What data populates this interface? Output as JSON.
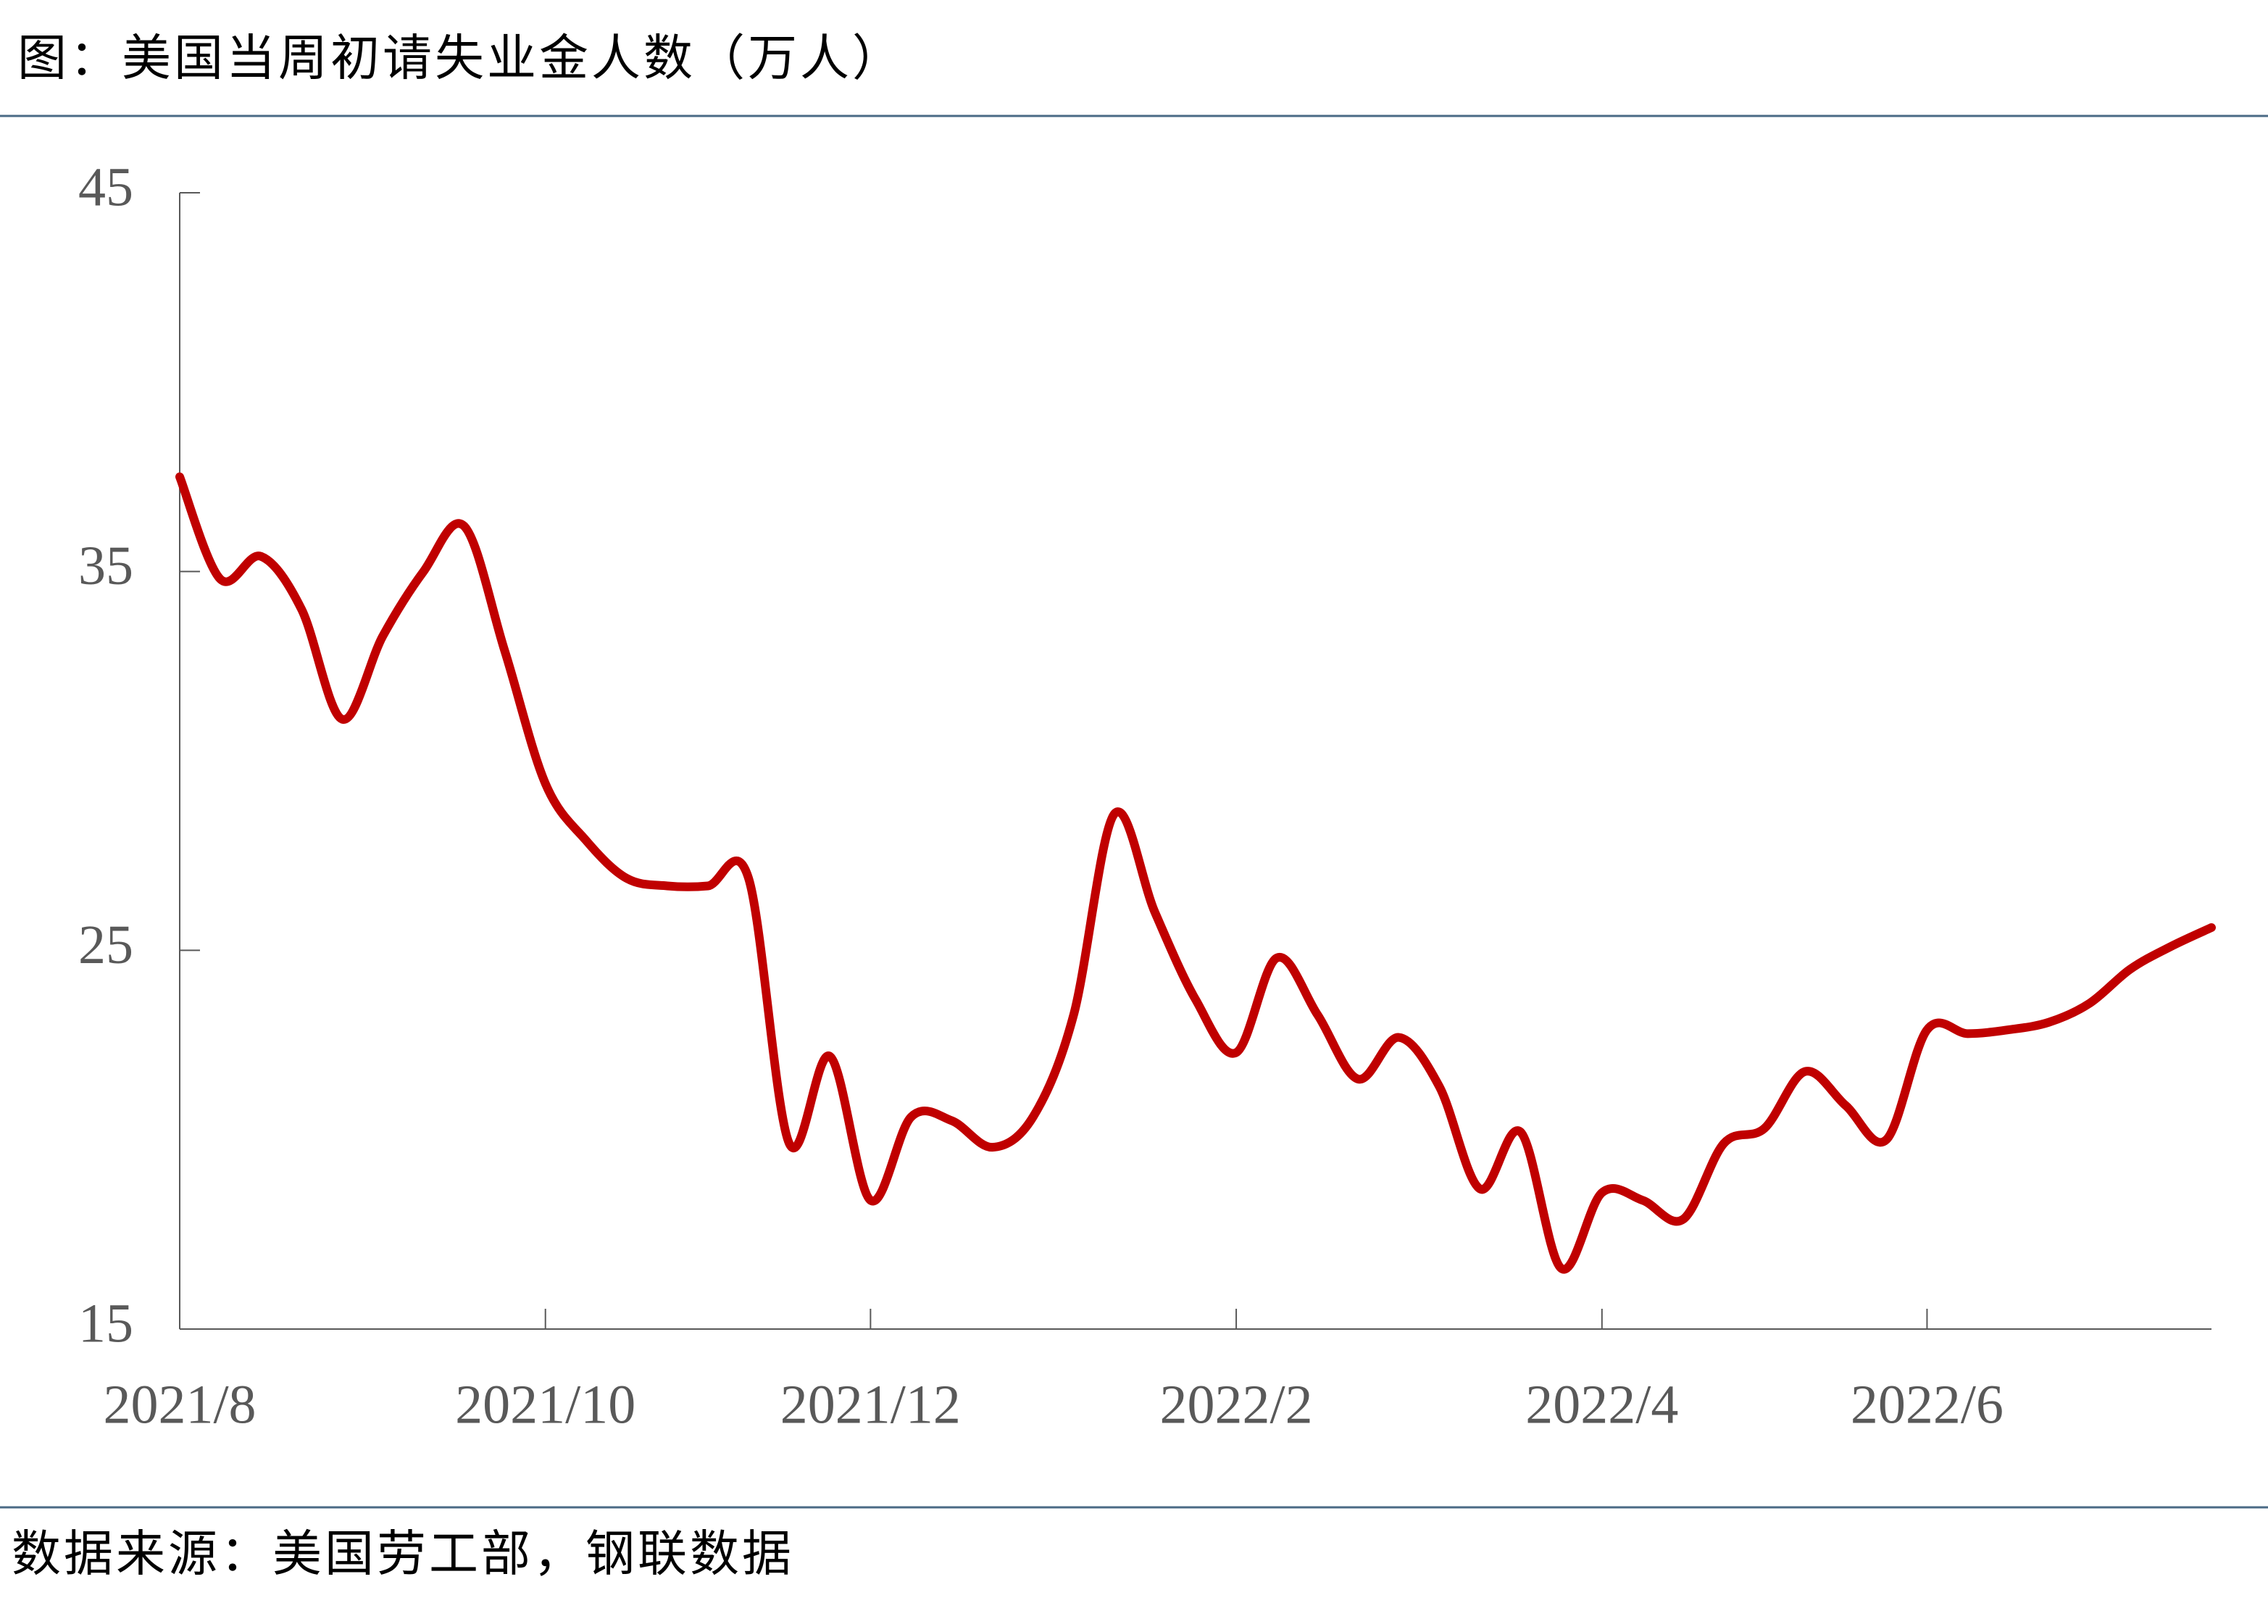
{
  "chart_data": {
    "type": "line",
    "title": "图：美国当周初请失业金人数（万人）",
    "source": "数据来源：美国劳工部，钢联数据",
    "categories": [
      "2021/8",
      null,
      null,
      null,
      null,
      null,
      null,
      null,
      null,
      "2021/10",
      null,
      null,
      null,
      null,
      null,
      null,
      null,
      "2021/12",
      null,
      null,
      null,
      null,
      null,
      null,
      null,
      null,
      "2022/2",
      null,
      null,
      null,
      null,
      null,
      null,
      null,
      null,
      "2022/4",
      null,
      null,
      null,
      null,
      null,
      null,
      null,
      "2022/6",
      null,
      null,
      null,
      null,
      null,
      null,
      null
    ],
    "series": [
      {
        "name": "当周初请失业金人数",
        "color": "#c00000",
        "values": [
          37.5,
          34.8,
          35.4,
          34.0,
          31.1,
          33.3,
          35.0,
          36.2,
          32.9,
          29.4,
          27.9,
          26.9,
          26.7,
          26.7,
          26.9,
          19.9,
          22.2,
          18.4,
          20.6,
          20.5,
          19.8,
          20.6,
          23.3,
          28.6,
          26.0,
          23.7,
          22.3,
          24.8,
          23.3,
          21.6,
          22.7,
          21.4,
          18.7,
          20.2,
          16.6,
          18.6,
          18.4,
          17.9,
          19.9,
          20.3,
          21.8,
          20.9,
          20.0,
          22.9,
          22.8,
          22.9,
          23.1,
          23.6,
          24.5,
          25.1,
          25.6
        ]
      }
    ],
    "ylim": [
      15,
      45
    ],
    "yticks": [
      15,
      25,
      35,
      45
    ]
  }
}
